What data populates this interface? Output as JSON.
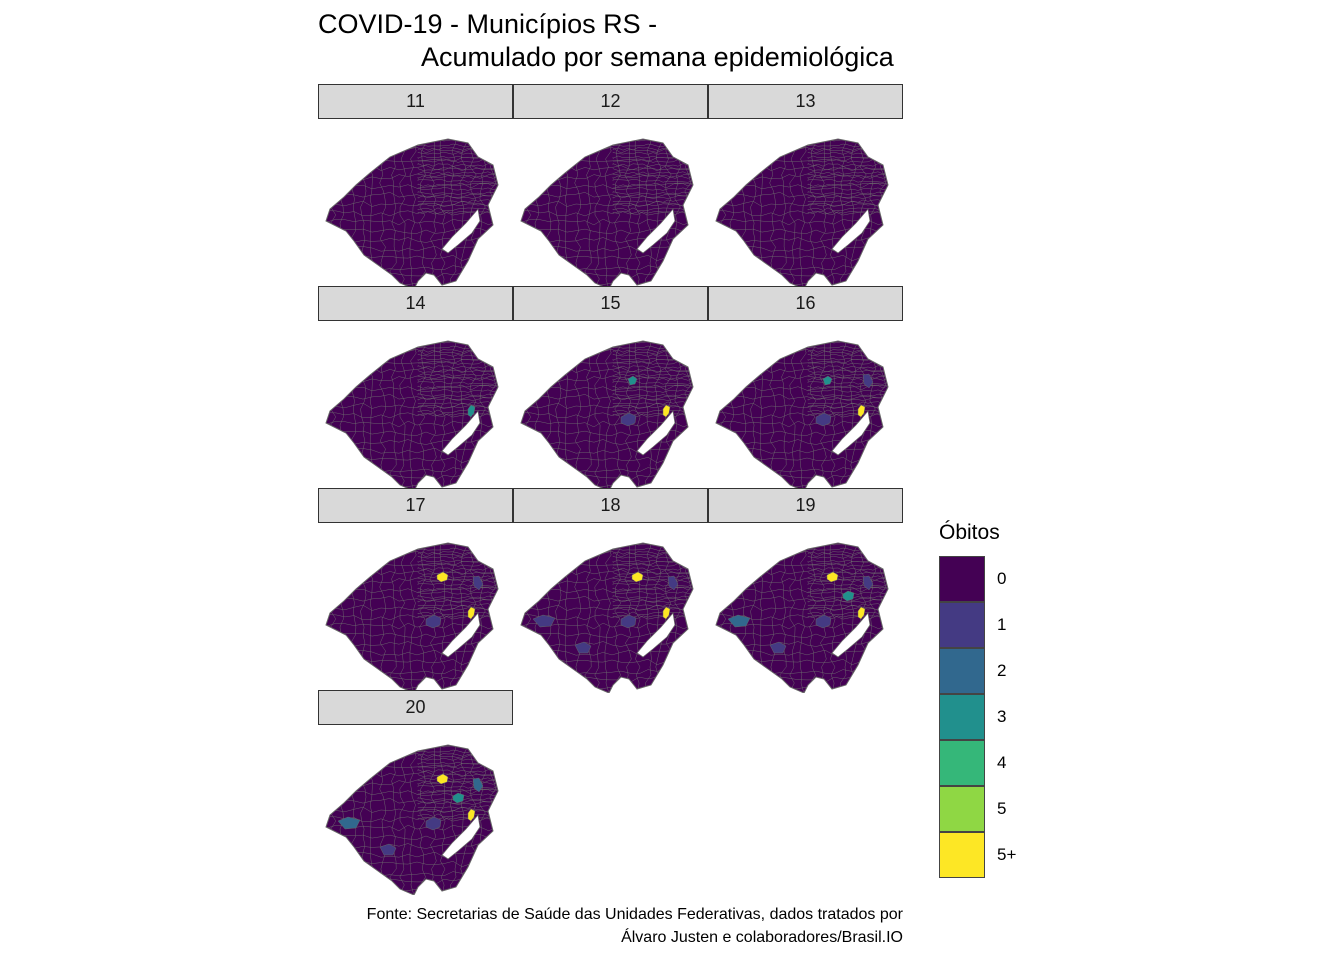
{
  "chart_data": {
    "type": "choropleth-map-facets",
    "title": "COVID-19 - Municípios RS -",
    "subtitle": "Acumulado por semana epidemiológica",
    "caption": [
      "Fonte: Secretarias de Saúde das Unidades Federativas, dados tratados por",
      "Álvaro Justen e colaboradores/Brasil.IO"
    ],
    "legend": {
      "title": "Óbitos",
      "placement": "right",
      "categories": [
        "0",
        "1",
        "2",
        "3",
        "4",
        "5",
        "5+"
      ],
      "colors": [
        "#440154",
        "#443a83",
        "#31688e",
        "#21908d",
        "#35b779",
        "#8fd744",
        "#fde725"
      ]
    },
    "facets": [
      {
        "week": "11",
        "highlights": []
      },
      {
        "week": "12",
        "highlights": []
      },
      {
        "week": "13",
        "highlights": []
      },
      {
        "week": "14",
        "highlights": [
          {
            "region": "porto-alegre",
            "category": 3
          }
        ]
      },
      {
        "week": "15",
        "highlights": [
          {
            "region": "porto-alegre",
            "category": 6
          },
          {
            "region": "north-central",
            "category": 3
          },
          {
            "region": "santa-maria",
            "category": 1
          }
        ]
      },
      {
        "week": "16",
        "highlights": [
          {
            "region": "porto-alegre",
            "category": 6
          },
          {
            "region": "north-central",
            "category": 3
          },
          {
            "region": "santa-maria",
            "category": 1
          },
          {
            "region": "northeast",
            "category": 1
          }
        ]
      },
      {
        "week": "17",
        "highlights": [
          {
            "region": "porto-alegre",
            "category": 6
          },
          {
            "region": "passo-fundo",
            "category": 6
          },
          {
            "region": "santa-maria",
            "category": 1
          },
          {
            "region": "northeast",
            "category": 1
          }
        ]
      },
      {
        "week": "18",
        "highlights": [
          {
            "region": "porto-alegre",
            "category": 6
          },
          {
            "region": "passo-fundo",
            "category": 6
          },
          {
            "region": "santa-maria",
            "category": 1
          },
          {
            "region": "northeast",
            "category": 1
          },
          {
            "region": "uruguaiana",
            "category": 1
          },
          {
            "region": "bage",
            "category": 1
          }
        ]
      },
      {
        "week": "19",
        "highlights": [
          {
            "region": "porto-alegre",
            "category": 6
          },
          {
            "region": "passo-fundo",
            "category": 6
          },
          {
            "region": "caxias",
            "category": 3
          },
          {
            "region": "santa-maria",
            "category": 1
          },
          {
            "region": "northeast",
            "category": 1
          },
          {
            "region": "uruguaiana",
            "category": 2
          },
          {
            "region": "bage",
            "category": 1
          }
        ]
      },
      {
        "week": "20",
        "highlights": [
          {
            "region": "porto-alegre",
            "category": 6
          },
          {
            "region": "passo-fundo",
            "category": 6
          },
          {
            "region": "caxias",
            "category": 3
          },
          {
            "region": "santa-maria",
            "category": 1
          },
          {
            "region": "northeast",
            "category": 2
          },
          {
            "region": "uruguaiana",
            "category": 2
          },
          {
            "region": "bage",
            "category": 1
          }
        ]
      }
    ]
  }
}
